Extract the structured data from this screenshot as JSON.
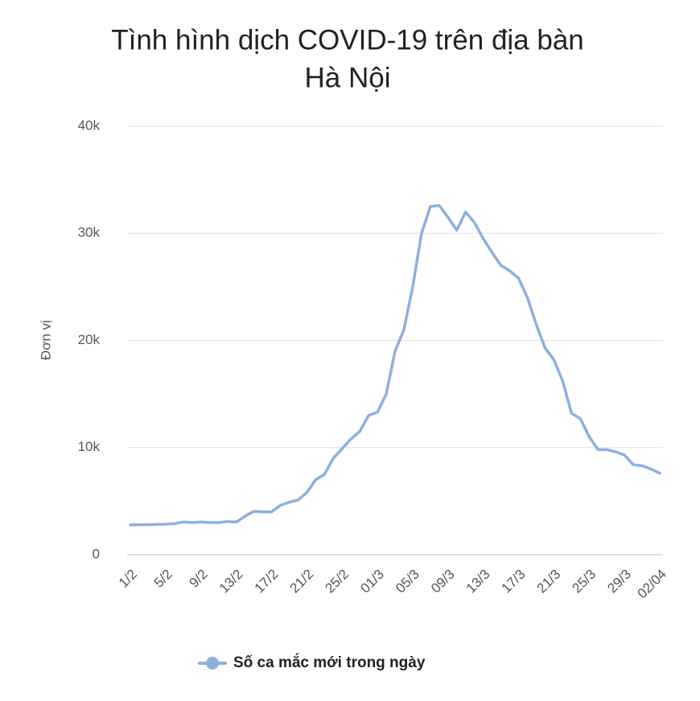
{
  "chart_data": {
    "type": "line",
    "title_lines": [
      "Tình hình dịch COVID-19 trên địa bàn",
      "Hà Nội"
    ],
    "y_label": "Đơn vị",
    "categories": [
      "1/2",
      null,
      null,
      null,
      "5/2",
      null,
      null,
      null,
      "9/2",
      null,
      null,
      null,
      "13/2",
      null,
      null,
      null,
      "17/2",
      null,
      null,
      null,
      "21/2",
      null,
      null,
      null,
      "25/2",
      null,
      null,
      null,
      "01/3",
      null,
      null,
      null,
      "05/3",
      null,
      null,
      null,
      "09/3",
      null,
      null,
      null,
      "13/3",
      null,
      null,
      null,
      "17/3",
      null,
      null,
      null,
      "21/3",
      null,
      null,
      null,
      "25/3",
      null,
      null,
      null,
      "29/3",
      null,
      null,
      null,
      "02/04"
    ],
    "series": [
      {
        "name": "Số ca mắc mới trong ngày",
        "color": "#8db0dd",
        "values": [
          2780,
          2800,
          2800,
          2820,
          2850,
          2900,
          3050,
          3000,
          3050,
          3000,
          3000,
          3100,
          3050,
          3600,
          4050,
          4000,
          4000,
          4600,
          4900,
          5100,
          5800,
          7000,
          7500,
          9000,
          9900,
          10800,
          11500,
          13000,
          13300,
          15000,
          19000,
          21000,
          25000,
          30000,
          32500,
          32600,
          31500,
          30300,
          32000,
          31000,
          29500,
          28200,
          27000,
          26500,
          25800,
          24000,
          21500,
          19300,
          18200,
          16200,
          13200,
          12700,
          11000,
          9800,
          9800,
          9600,
          9300,
          8400,
          8300,
          8000,
          7600
        ]
      }
    ],
    "ylim": [
      0,
      40000
    ],
    "yticks": [
      0,
      {
        "value": 10000,
        "label": "10k"
      },
      {
        "value": 20000,
        "label": "20k"
      },
      {
        "value": 30000,
        "label": "30k"
      },
      {
        "value": 40000,
        "label": "40k"
      }
    ],
    "grid": true,
    "legend": "bottom"
  }
}
